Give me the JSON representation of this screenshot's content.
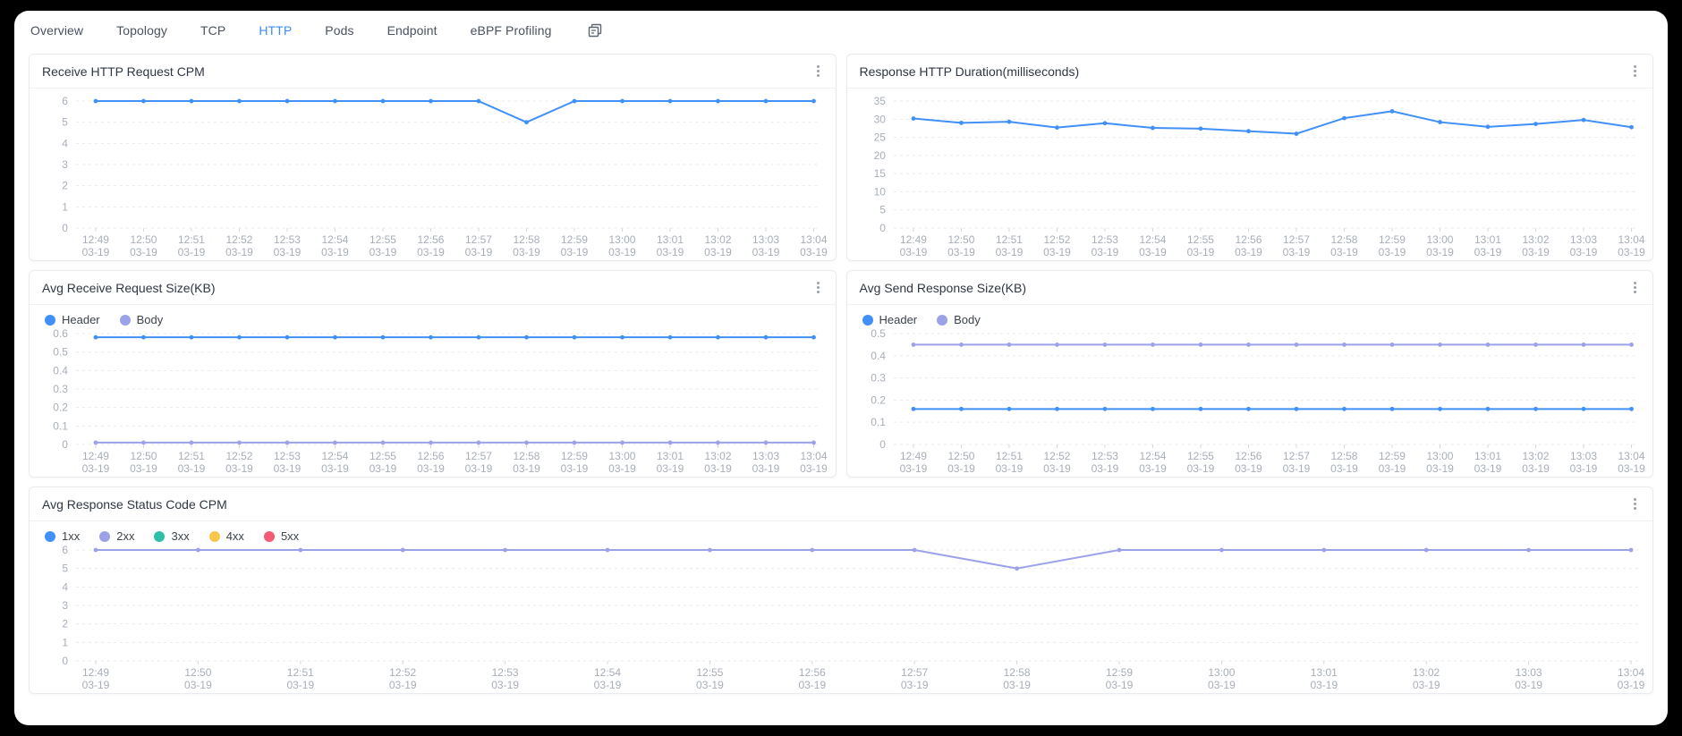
{
  "tab_bar": {
    "tabs": [
      {
        "label": "Overview",
        "active": false
      },
      {
        "label": "Topology",
        "active": false
      },
      {
        "label": "TCP",
        "active": false
      },
      {
        "label": "HTTP",
        "active": true
      },
      {
        "label": "Pods",
        "active": false
      },
      {
        "label": "Endpoint",
        "active": false
      },
      {
        "label": "eBPF Profiling",
        "active": false
      }
    ],
    "active_tab": "HTTP",
    "trailing_icon": "copy-icon"
  },
  "colors": {
    "accent": "#3c8cf8",
    "line_blue": "#4090f7",
    "line_purple": "#9ca2e8",
    "teal": "#2fbfa9",
    "yellow": "#f7c64b",
    "red": "#f55a74",
    "axis_label": "#a7aeb8",
    "grid": "#e8eaee"
  },
  "x_axis": {
    "times": [
      "12:49",
      "12:50",
      "12:51",
      "12:52",
      "12:53",
      "12:54",
      "12:55",
      "12:56",
      "12:57",
      "12:58",
      "12:59",
      "13:00",
      "13:01",
      "13:02",
      "13:03",
      "13:04"
    ],
    "date": "03-19"
  },
  "chart_data": [
    {
      "type": "line",
      "title": "Receive HTTP Request CPM",
      "categories": [
        "12:49",
        "12:50",
        "12:51",
        "12:52",
        "12:53",
        "12:54",
        "12:55",
        "12:56",
        "12:57",
        "12:58",
        "12:59",
        "13:00",
        "13:01",
        "13:02",
        "13:03",
        "13:04"
      ],
      "x_date": "03-19",
      "y_ticks": [
        0,
        1,
        2,
        3,
        4,
        5,
        6
      ],
      "ylim": [
        0,
        6
      ],
      "grid": "dashed",
      "legend": null,
      "series": [
        {
          "name": "CPM",
          "color": "#4090f7",
          "values": [
            6,
            6,
            6,
            6,
            6,
            6,
            6,
            6,
            6,
            5,
            6,
            6,
            6,
            6,
            6,
            6
          ]
        }
      ]
    },
    {
      "type": "line",
      "title": "Response HTTP Duration(milliseconds)",
      "categories": [
        "12:49",
        "12:50",
        "12:51",
        "12:52",
        "12:53",
        "12:54",
        "12:55",
        "12:56",
        "12:57",
        "12:58",
        "12:59",
        "13:00",
        "13:01",
        "13:02",
        "13:03",
        "13:04"
      ],
      "x_date": "03-19",
      "y_ticks": [
        0,
        5,
        10,
        15,
        20,
        25,
        30,
        35
      ],
      "ylim": [
        0,
        35
      ],
      "grid": "dashed",
      "legend": null,
      "series": [
        {
          "name": "Duration",
          "color": "#4090f7",
          "values": [
            30.2,
            29.0,
            29.3,
            27.7,
            28.9,
            27.6,
            27.4,
            26.7,
            26.0,
            30.3,
            32.2,
            29.2,
            27.9,
            28.7,
            29.8,
            27.8
          ]
        }
      ]
    },
    {
      "type": "line",
      "title": "Avg Receive Request Size(KB)",
      "categories": [
        "12:49",
        "12:50",
        "12:51",
        "12:52",
        "12:53",
        "12:54",
        "12:55",
        "12:56",
        "12:57",
        "12:58",
        "12:59",
        "13:00",
        "13:01",
        "13:02",
        "13:03",
        "13:04"
      ],
      "x_date": "03-19",
      "y_ticks": [
        0,
        0.1,
        0.2,
        0.3,
        0.4,
        0.5,
        0.6
      ],
      "ylim": [
        0,
        0.6
      ],
      "grid": "dashed",
      "legend": [
        "Header",
        "Body"
      ],
      "series": [
        {
          "name": "Header",
          "color": "#4090f7",
          "values": [
            0.58,
            0.58,
            0.58,
            0.58,
            0.58,
            0.58,
            0.58,
            0.58,
            0.58,
            0.58,
            0.58,
            0.58,
            0.58,
            0.58,
            0.58,
            0.58
          ]
        },
        {
          "name": "Body",
          "color": "#9ca2e8",
          "values": [
            0.01,
            0.01,
            0.01,
            0.01,
            0.01,
            0.01,
            0.01,
            0.01,
            0.01,
            0.01,
            0.01,
            0.01,
            0.01,
            0.01,
            0.01,
            0.01
          ]
        }
      ]
    },
    {
      "type": "line",
      "title": "Avg Send Response Size(KB)",
      "categories": [
        "12:49",
        "12:50",
        "12:51",
        "12:52",
        "12:53",
        "12:54",
        "12:55",
        "12:56",
        "12:57",
        "12:58",
        "12:59",
        "13:00",
        "13:01",
        "13:02",
        "13:03",
        "13:04"
      ],
      "x_date": "03-19",
      "y_ticks": [
        0,
        0.1,
        0.2,
        0.3,
        0.4,
        0.5
      ],
      "ylim": [
        0,
        0.5
      ],
      "grid": "dashed",
      "legend": [
        "Header",
        "Body"
      ],
      "series": [
        {
          "name": "Header",
          "color": "#4090f7",
          "values": [
            0.16,
            0.16,
            0.16,
            0.16,
            0.16,
            0.16,
            0.16,
            0.16,
            0.16,
            0.16,
            0.16,
            0.16,
            0.16,
            0.16,
            0.16,
            0.16
          ]
        },
        {
          "name": "Body",
          "color": "#9ca2e8",
          "values": [
            0.45,
            0.45,
            0.45,
            0.45,
            0.45,
            0.45,
            0.45,
            0.45,
            0.45,
            0.45,
            0.45,
            0.45,
            0.45,
            0.45,
            0.45,
            0.45
          ]
        }
      ]
    },
    {
      "type": "line",
      "title": "Avg Response Status Code CPM",
      "categories": [
        "12:49",
        "12:50",
        "12:51",
        "12:52",
        "12:53",
        "12:54",
        "12:55",
        "12:56",
        "12:57",
        "12:58",
        "12:59",
        "13:00",
        "13:01",
        "13:02",
        "13:03",
        "13:04"
      ],
      "x_date": "03-19",
      "y_ticks": [
        0,
        1,
        2,
        3,
        4,
        5,
        6
      ],
      "ylim": [
        0,
        6
      ],
      "grid": "dashed",
      "legend": [
        "1xx",
        "2xx",
        "3xx",
        "4xx",
        "5xx"
      ],
      "legend_colors": {
        "1xx": "#4090f7",
        "2xx": "#9ca2e8",
        "3xx": "#2fbfa9",
        "4xx": "#f7c64b",
        "5xx": "#f55a74"
      },
      "series": [
        {
          "name": "2xx",
          "color": "#9ca2e8",
          "values": [
            6,
            6,
            6,
            6,
            6,
            6,
            6,
            6,
            6,
            5,
            6,
            6,
            6,
            6,
            6,
            6
          ]
        }
      ]
    }
  ]
}
